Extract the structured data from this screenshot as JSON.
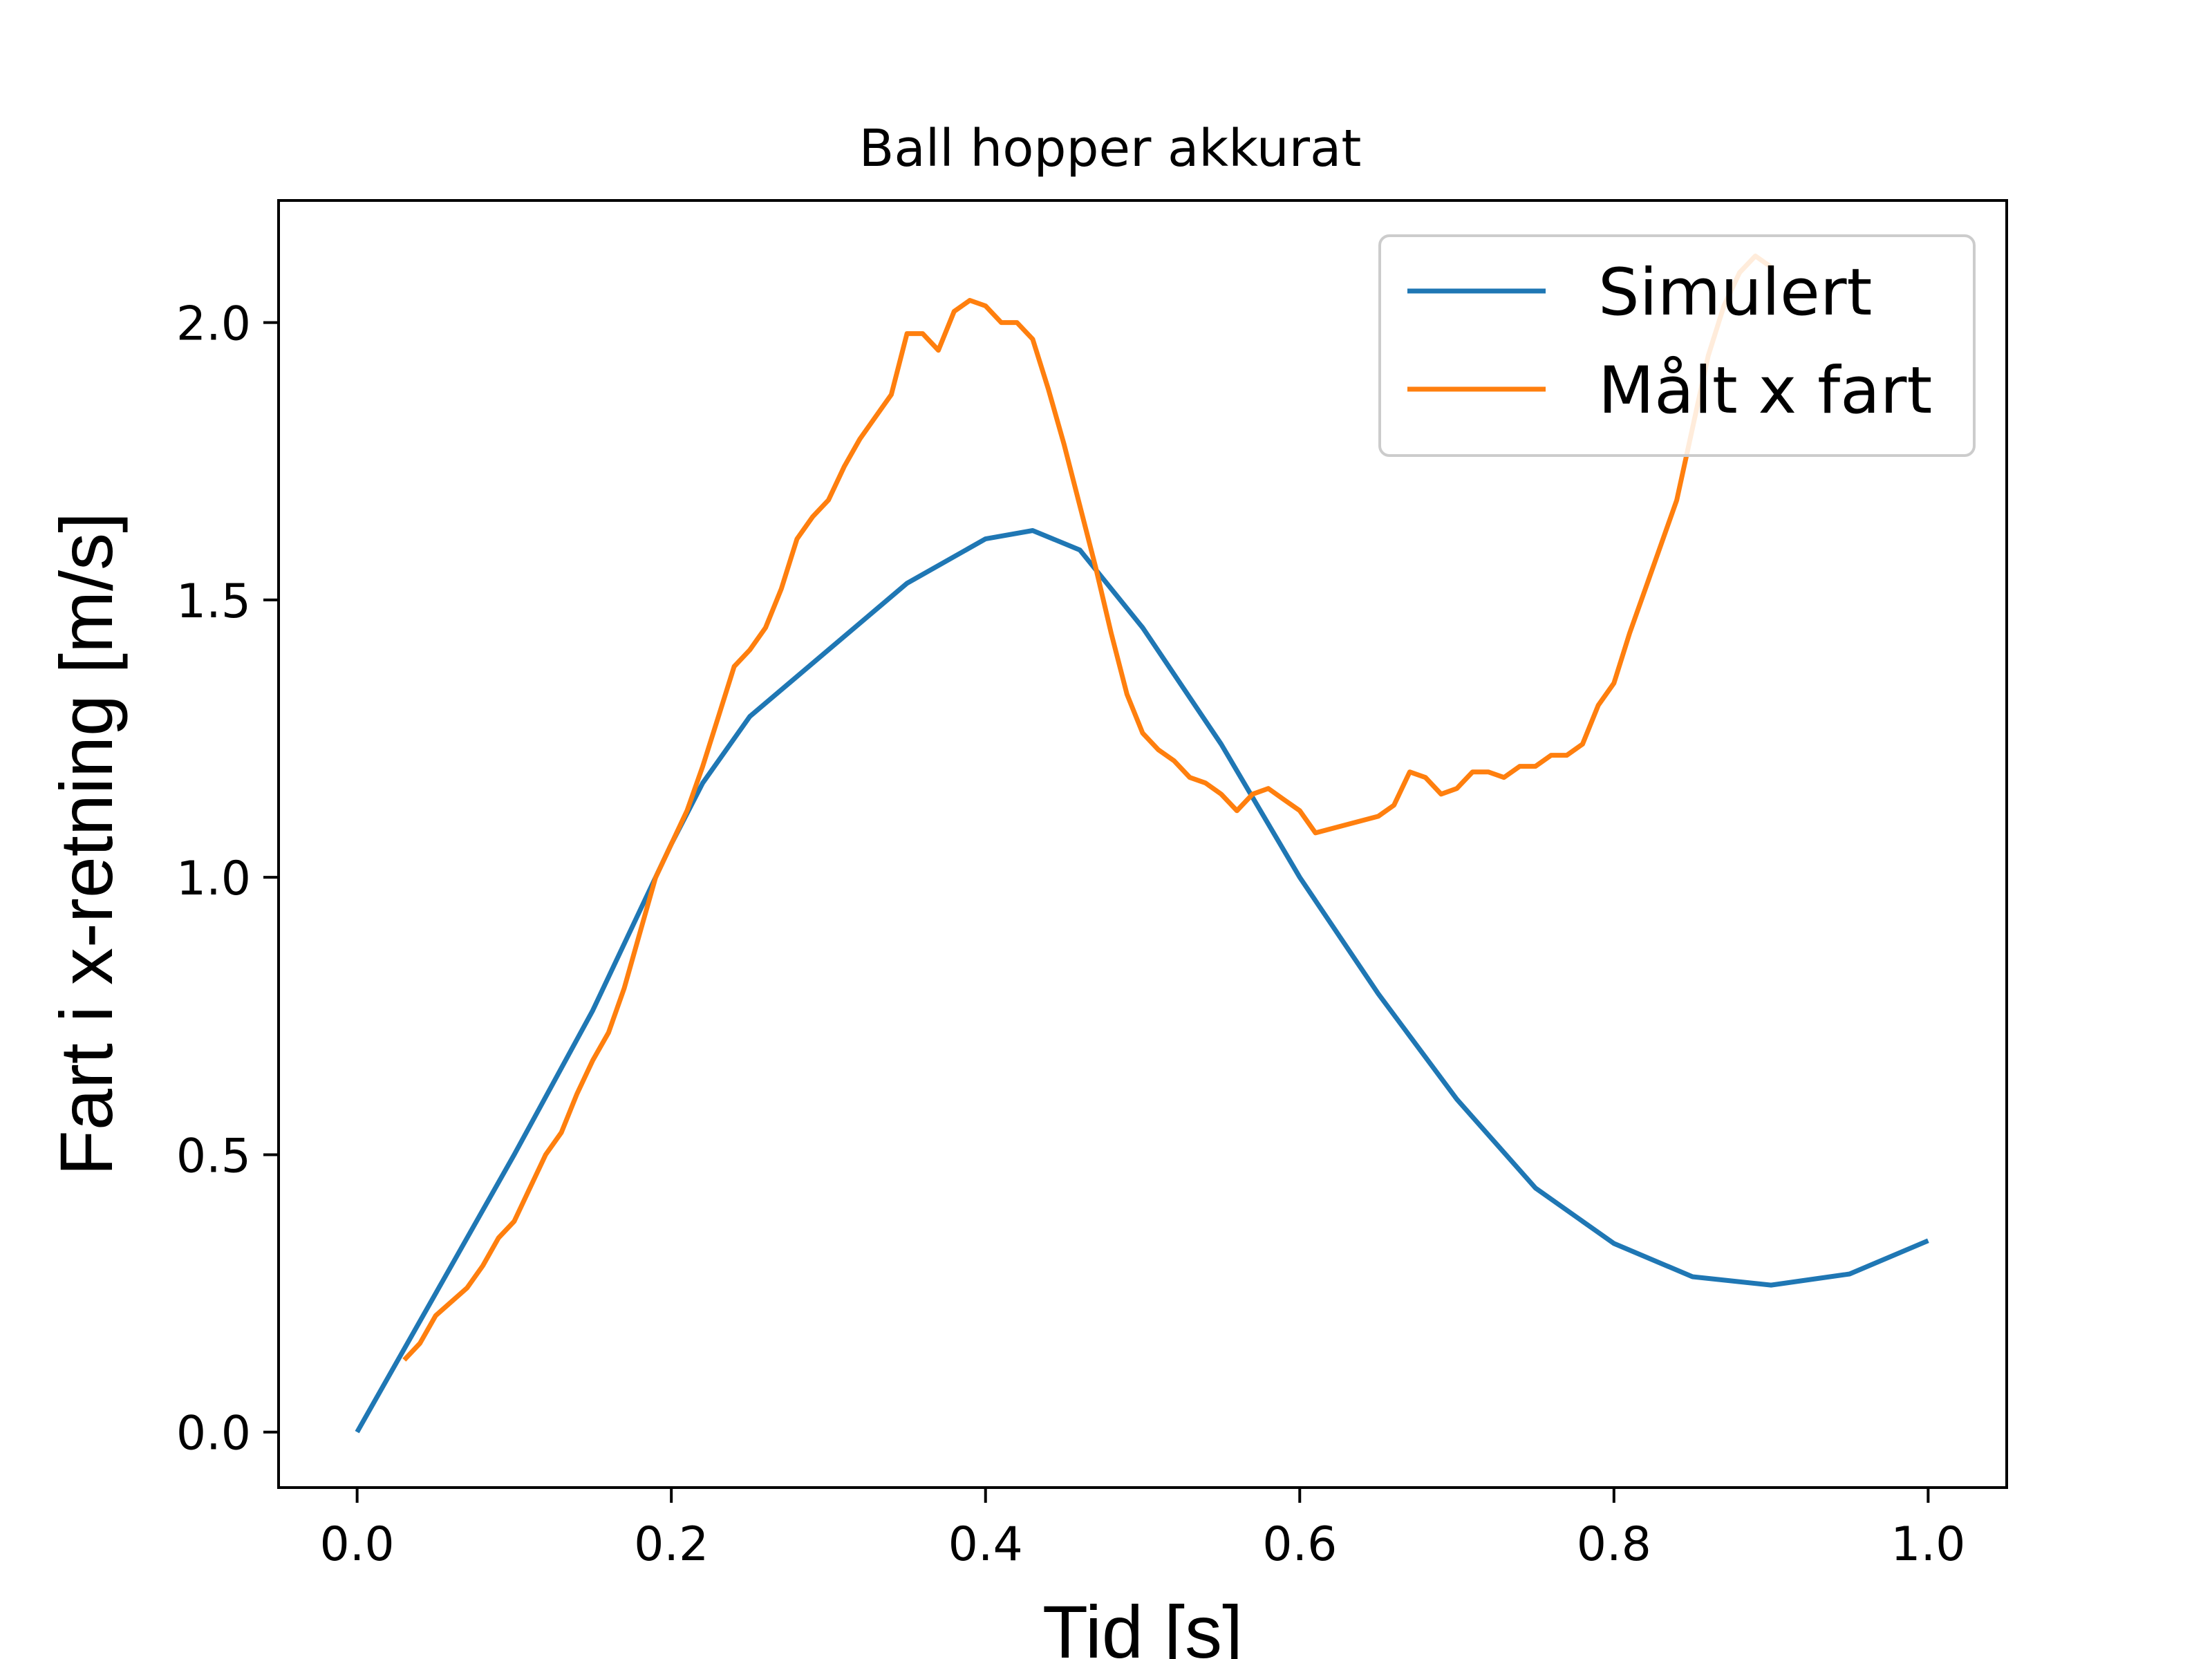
{
  "chart_data": {
    "type": "line",
    "title": "Ball hopper akkurat",
    "xlabel": "Tid [s]",
    "ylabel": "Fart i x-retning [m/s]",
    "xlim": [
      -0.05,
      1.05
    ],
    "ylim": [
      -0.1,
      2.22
    ],
    "xticks": [
      0.0,
      0.2,
      0.4,
      0.6,
      0.8,
      1.0
    ],
    "xtick_labels": [
      "0.0",
      "0.2",
      "0.4",
      "0.6",
      "0.8",
      "1.0"
    ],
    "yticks": [
      0.0,
      0.5,
      1.0,
      1.5,
      2.0
    ],
    "ytick_labels": [
      "0.0",
      "0.5",
      "1.0",
      "1.5",
      "2.0"
    ],
    "grid": false,
    "legend_position": "top-right",
    "series": [
      {
        "name": "Simulert",
        "color": "#1f77b4",
        "x": [
          0.0,
          0.05,
          0.1,
          0.15,
          0.2,
          0.22,
          0.25,
          0.3,
          0.35,
          0.4,
          0.43,
          0.46,
          0.5,
          0.55,
          0.6,
          0.65,
          0.7,
          0.75,
          0.8,
          0.85,
          0.9,
          0.95,
          1.0
        ],
        "y": [
          0.0,
          0.25,
          0.5,
          0.76,
          1.06,
          1.17,
          1.29,
          1.41,
          1.53,
          1.61,
          1.625,
          1.59,
          1.45,
          1.24,
          1.0,
          0.79,
          0.6,
          0.44,
          0.34,
          0.28,
          0.265,
          0.285,
          0.345
        ]
      },
      {
        "name": "Målt x fart",
        "color": "#ff7f0e",
        "x": [
          0.03,
          0.04,
          0.05,
          0.07,
          0.08,
          0.09,
          0.1,
          0.11,
          0.12,
          0.13,
          0.14,
          0.15,
          0.16,
          0.17,
          0.18,
          0.19,
          0.2,
          0.21,
          0.22,
          0.23,
          0.24,
          0.25,
          0.26,
          0.27,
          0.28,
          0.29,
          0.3,
          0.31,
          0.32,
          0.33,
          0.34,
          0.35,
          0.36,
          0.37,
          0.38,
          0.39,
          0.4,
          0.41,
          0.42,
          0.43,
          0.44,
          0.45,
          0.46,
          0.47,
          0.48,
          0.49,
          0.5,
          0.51,
          0.52,
          0.53,
          0.54,
          0.55,
          0.56,
          0.57,
          0.58,
          0.59,
          0.6,
          0.61,
          0.65,
          0.66,
          0.67,
          0.68,
          0.69,
          0.7,
          0.71,
          0.72,
          0.73,
          0.74,
          0.75,
          0.76,
          0.77,
          0.78,
          0.79,
          0.8,
          0.81,
          0.82,
          0.84,
          0.85,
          0.86,
          0.87,
          0.88,
          0.89,
          0.9
        ],
        "y": [
          0.13,
          0.16,
          0.21,
          0.26,
          0.3,
          0.35,
          0.38,
          0.44,
          0.5,
          0.54,
          0.61,
          0.67,
          0.72,
          0.8,
          0.9,
          1.0,
          1.06,
          1.12,
          1.2,
          1.29,
          1.38,
          1.41,
          1.45,
          1.52,
          1.61,
          1.65,
          1.68,
          1.74,
          1.79,
          1.83,
          1.87,
          1.98,
          1.98,
          1.95,
          2.02,
          2.04,
          2.03,
          2.0,
          2.0,
          1.97,
          1.88,
          1.78,
          1.67,
          1.56,
          1.44,
          1.33,
          1.26,
          1.23,
          1.21,
          1.18,
          1.17,
          1.15,
          1.12,
          1.15,
          1.16,
          1.14,
          1.12,
          1.08,
          1.11,
          1.13,
          1.19,
          1.18,
          1.15,
          1.16,
          1.19,
          1.19,
          1.18,
          1.2,
          1.2,
          1.22,
          1.22,
          1.24,
          1.31,
          1.35,
          1.44,
          1.52,
          1.68,
          1.81,
          1.94,
          2.03,
          2.09,
          2.12,
          2.1
        ]
      }
    ]
  }
}
